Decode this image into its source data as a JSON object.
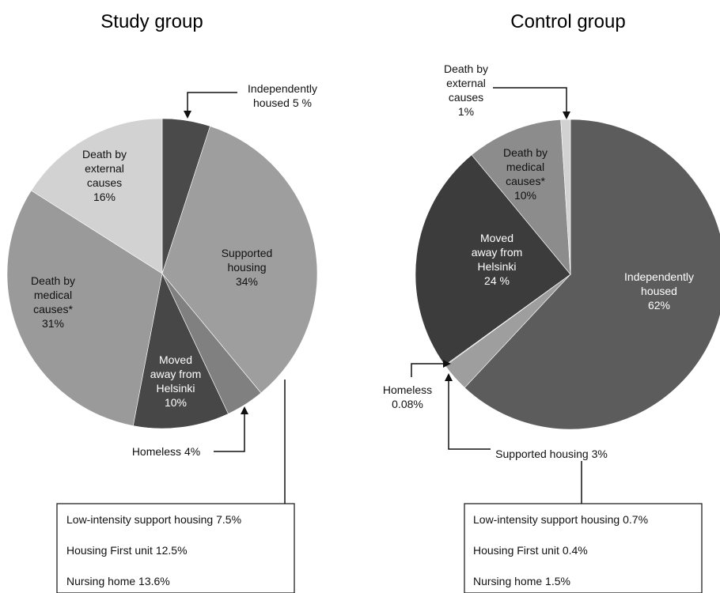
{
  "chart_data": [
    {
      "type": "pie",
      "title": "Study group",
      "slices": [
        {
          "label_lines": [
            "Independently",
            "housed 5 %"
          ],
          "value": 5,
          "color": "#4a4a4a"
        },
        {
          "label_lines": [
            "Supported",
            "housing",
            "34%"
          ],
          "value": 34,
          "color": "#9e9e9e"
        },
        {
          "label_lines": [
            "Homeless 4%"
          ],
          "value": 4,
          "color": "#808080"
        },
        {
          "label_lines": [
            "Moved",
            "away from",
            "Helsinki",
            "10%"
          ],
          "value": 10,
          "color": "#474747"
        },
        {
          "label_lines": [
            "Death by",
            "medical",
            "causes*",
            "31%"
          ],
          "value": 31,
          "color": "#9a9a9a"
        },
        {
          "label_lines": [
            "Death by",
            "external",
            "causes",
            "16%"
          ],
          "value": 16,
          "color": "#d2d2d2"
        }
      ],
      "detail_box": [
        "Low-intensity support housing 7.5%",
        "Housing First unit 12.5%",
        "Nursing home 13.6%"
      ]
    },
    {
      "type": "pie",
      "title": "Control group",
      "slices": [
        {
          "label_lines": [
            "Independently",
            "housed",
            "62%"
          ],
          "value": 62,
          "color": "#5c5c5c"
        },
        {
          "label_lines": [
            "Supported housing 3%"
          ],
          "value": 3,
          "color": "#9e9e9e"
        },
        {
          "label_lines": [
            "Homeless",
            "0.08%"
          ],
          "value": 0.08,
          "color": "#707070"
        },
        {
          "label_lines": [
            "Moved",
            "away from",
            "Helsinki",
            "24 %"
          ],
          "value": 24,
          "color": "#3c3c3c"
        },
        {
          "label_lines": [
            "Death by",
            "medical",
            "causes*",
            "10%"
          ],
          "value": 10,
          "color": "#8c8c8c"
        },
        {
          "label_lines": [
            "Death by",
            "external",
            "causes",
            "1%"
          ],
          "value": 1,
          "color": "#d2d2d2"
        }
      ],
      "detail_box": [
        "Low-intensity support housing 0.7%",
        "Housing First unit 0.4%",
        "Nursing home 1.5%"
      ]
    }
  ]
}
